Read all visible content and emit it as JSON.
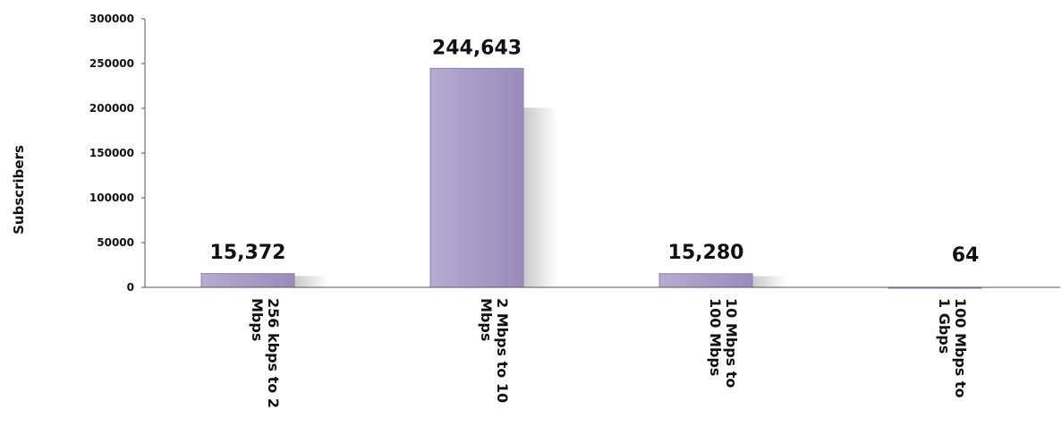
{
  "chart_data": {
    "type": "bar",
    "ylabel": "Subscribers",
    "xlabel": "",
    "ylim": [
      0,
      300000
    ],
    "yticks": [
      0,
      50000,
      100000,
      150000,
      200000,
      250000,
      300000
    ],
    "ytick_labels": [
      "0",
      "50000",
      "100000",
      "150000",
      "200000",
      "250000",
      "300000"
    ],
    "categories": [
      [
        "256 kbps to 2",
        "Mbps"
      ],
      [
        "2 Mbps to 10",
        "Mbps"
      ],
      [
        "10 Mbps to",
        "100 Mbps"
      ],
      [
        "100 Mbps  to",
        "1 Gbps"
      ]
    ],
    "values": [
      15372,
      244643,
      15280,
      64
    ],
    "value_labels": [
      "15,372",
      "244,643",
      "15,280",
      "64"
    ],
    "bar_color": "#a99ac7",
    "bar_edge_color": "#8d80b0",
    "grid": false,
    "legend": "none"
  }
}
